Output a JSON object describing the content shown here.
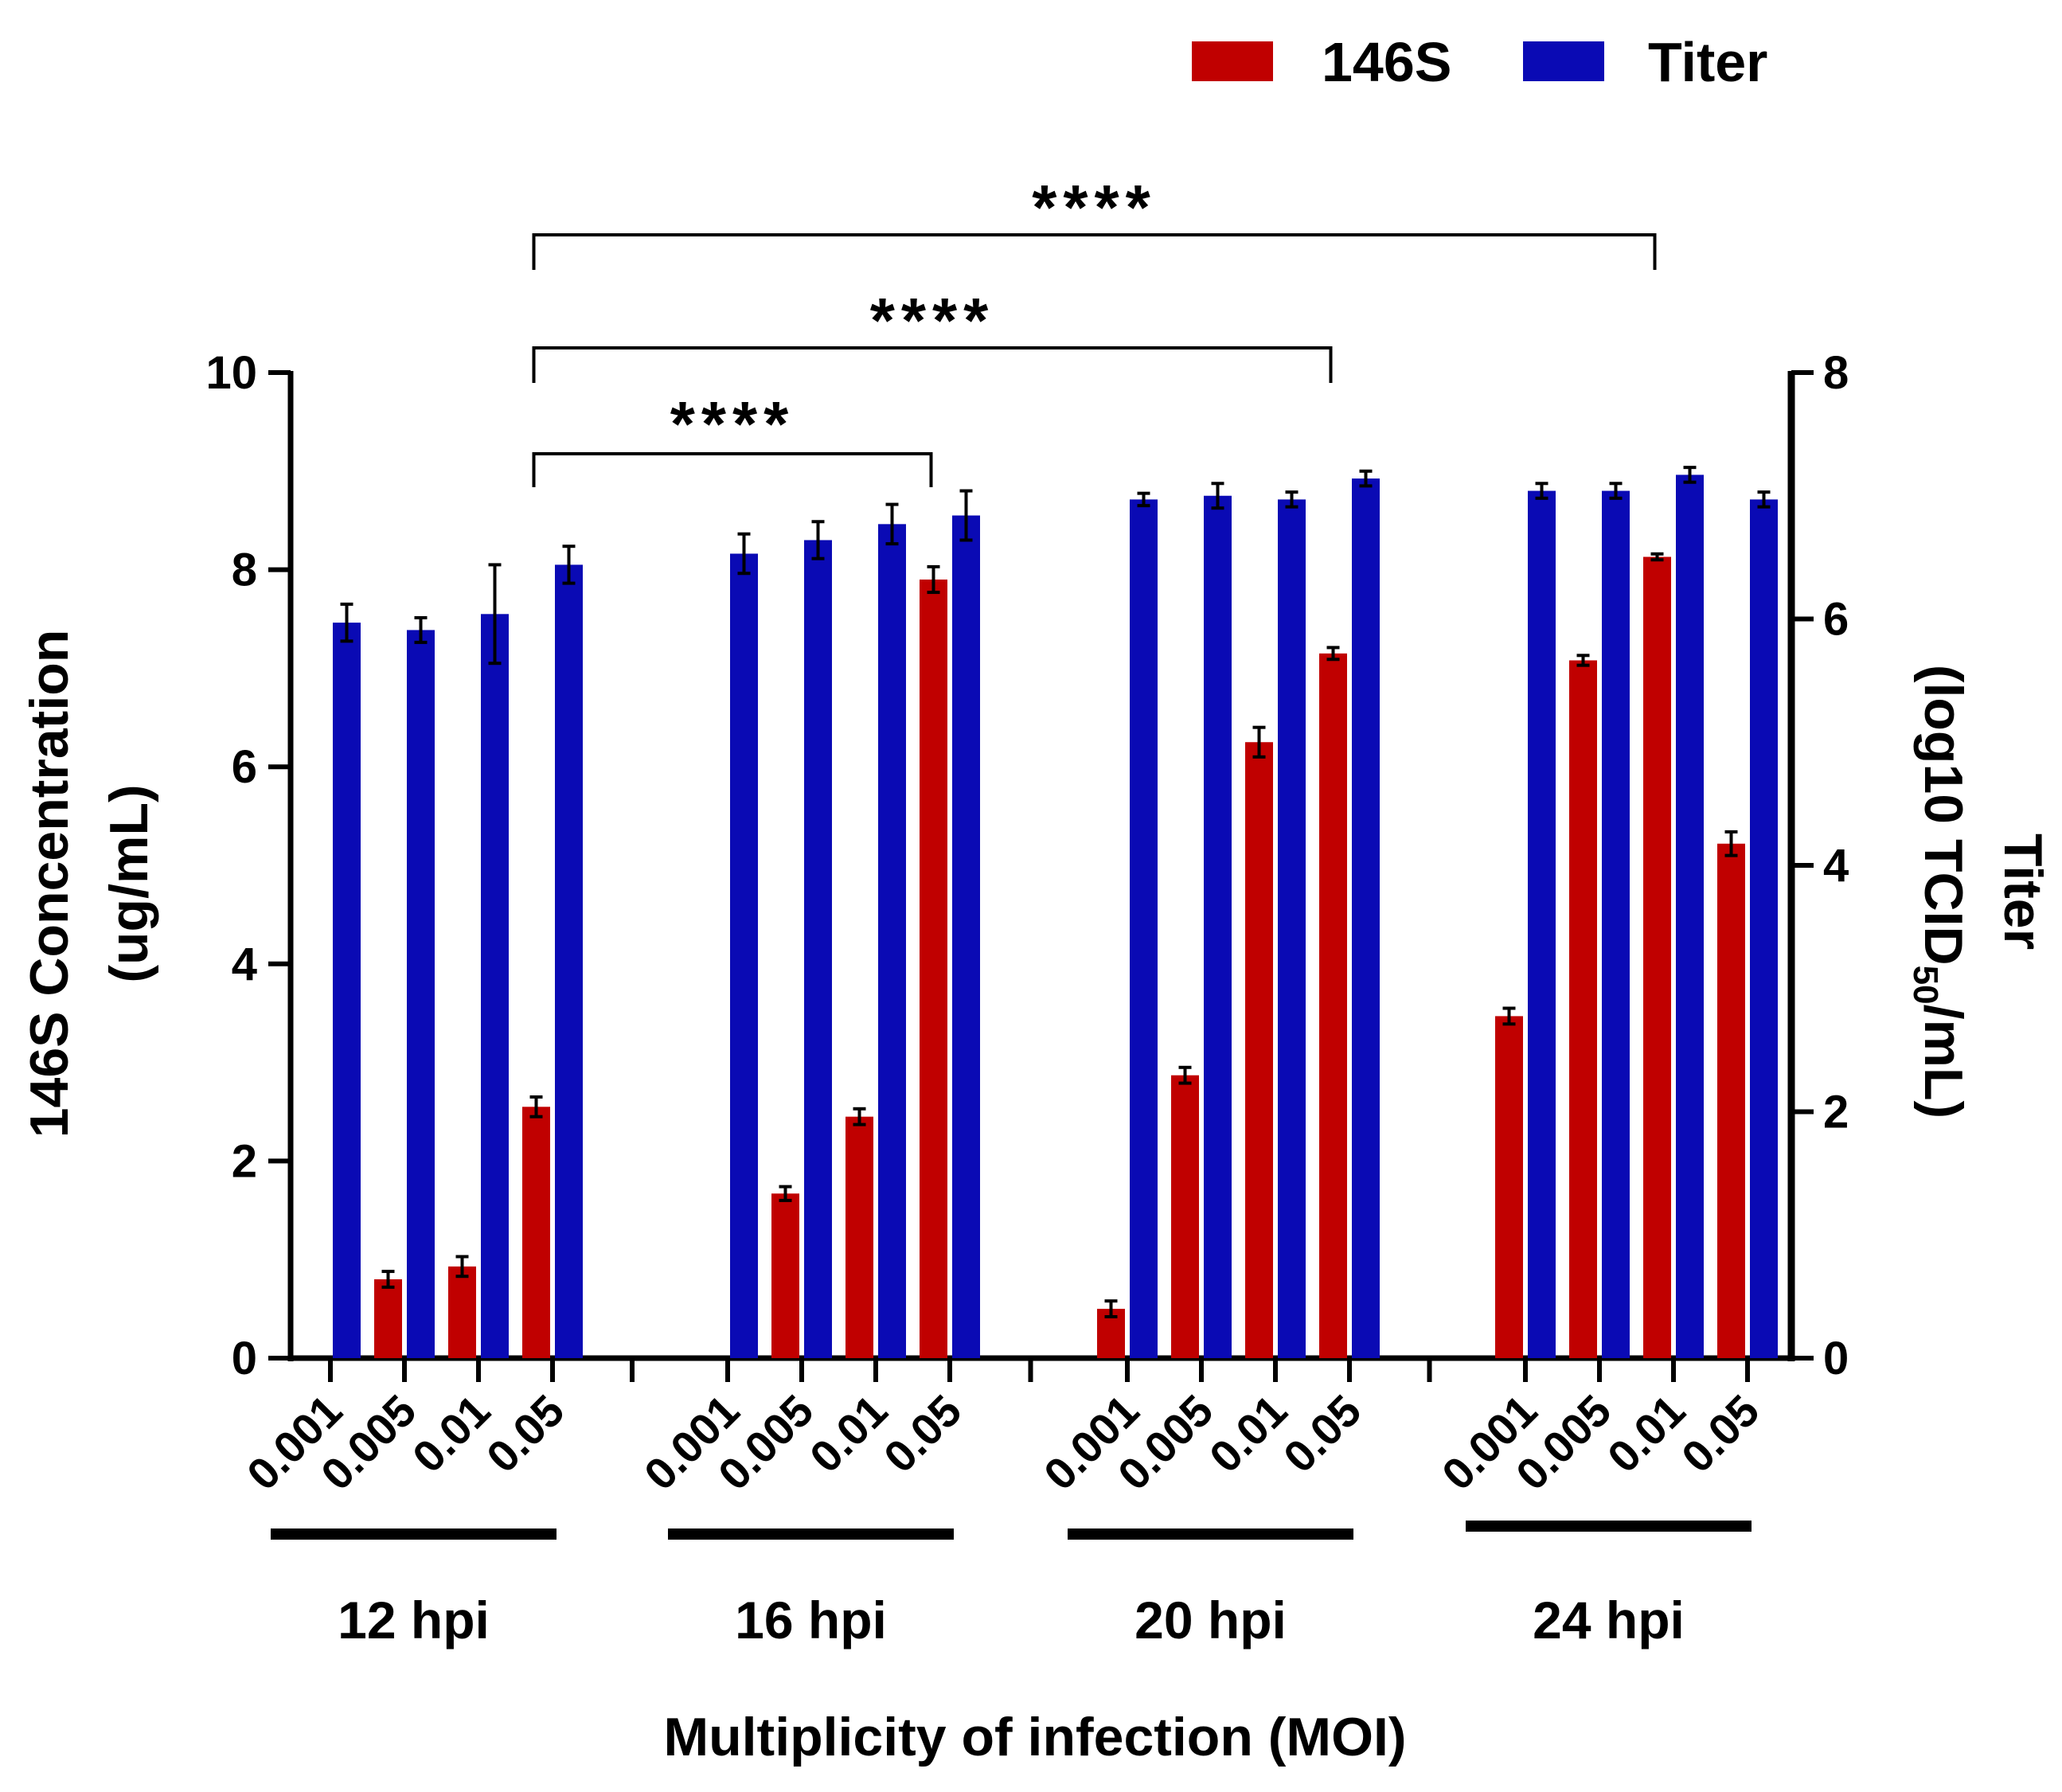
{
  "chart_data": {
    "type": "bar",
    "xlabel": "Multiplicity of infection (MOI)",
    "ylabel_left": [
      "146S Concentration",
      "(ug/mL)"
    ],
    "ylabel_right": {
      "line1": "Titer",
      "line2_pre": "(log10 TCID",
      "line2_sub": "50",
      "line2_post": "/mL)"
    },
    "ylim_left": [
      0,
      10
    ],
    "yticks_left": [
      0,
      2,
      4,
      6,
      8,
      10
    ],
    "ylim_right": [
      0,
      8
    ],
    "yticks_right": [
      0,
      2,
      4,
      6,
      8
    ],
    "legend": [
      {
        "name": "146S",
        "color": "#c00000"
      },
      {
        "name": "Titer",
        "color": "#0a0ab4"
      }
    ],
    "moi_labels": [
      "0.001",
      "0.005",
      "0.01",
      "0.05"
    ],
    "groups": [
      {
        "label": "12 hpi",
        "s146": [
          0.0,
          0.8,
          0.93,
          2.55
        ],
        "s146_err": [
          0,
          0.08,
          0.1,
          0.1
        ],
        "titer": [
          5.97,
          5.91,
          6.04,
          6.44
        ],
        "titer_err": [
          0.15,
          0.1,
          0.4,
          0.15
        ]
      },
      {
        "label": "16 hpi",
        "s146": [
          0.0,
          1.67,
          2.45,
          7.9
        ],
        "s146_err": [
          0,
          0.07,
          0.08,
          0.13
        ],
        "titer": [
          6.53,
          6.64,
          6.77,
          6.84
        ],
        "titer_err": [
          0.16,
          0.15,
          0.16,
          0.2
        ]
      },
      {
        "label": "20 hpi",
        "s146": [
          0.5,
          2.87,
          6.25,
          7.15
        ],
        "s146_err": [
          0.08,
          0.08,
          0.15,
          0.06
        ],
        "titer": [
          6.97,
          7.0,
          6.97,
          7.14
        ],
        "titer_err": [
          0.05,
          0.1,
          0.06,
          0.06
        ]
      },
      {
        "label": "24 hpi",
        "s146": [
          3.47,
          7.08,
          8.13,
          5.22
        ],
        "s146_err": [
          0.08,
          0.05,
          0.03,
          0.12
        ],
        "titer": [
          7.04,
          7.04,
          7.17,
          6.97
        ],
        "titer_err": [
          0.06,
          0.06,
          0.06,
          0.06
        ]
      }
    ],
    "significance": [
      {
        "from": "12 hpi / 0.05",
        "to": "16 hpi / 0.05",
        "label": "****"
      },
      {
        "from": "12 hpi / 0.05",
        "to": "20 hpi / 0.05",
        "label": "****"
      },
      {
        "from": "12 hpi / 0.05",
        "to": "24 hpi / 0.01",
        "label": "****"
      }
    ]
  }
}
